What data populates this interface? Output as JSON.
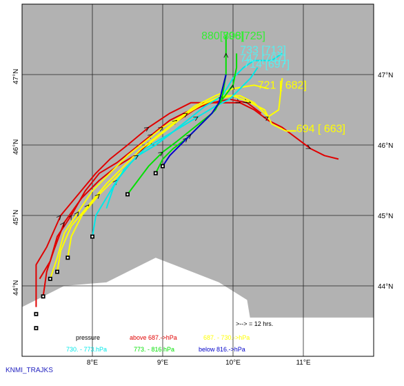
{
  "credit": "KNMI_TRAJKS",
  "interval_note": ">--> = 12 hrs.",
  "legend": {
    "title": "pressure",
    "entries": [
      {
        "text": "above   687.->hPa",
        "color": "#e00000"
      },
      {
        "text": "687. -     730.->hPa",
        "color": "#ffff00"
      },
      {
        "text": "730. -     773.hPa",
        "color": "#00e8e8"
      },
      {
        "text": "773. -     816.hPa",
        "color": "#00e000"
      },
      {
        "text": "below    816.->hPa",
        "color": "#0000c8"
      }
    ]
  },
  "axes": {
    "x_ticks": [
      {
        "value": 8,
        "label": "8°E"
      },
      {
        "value": 9,
        "label": "9°E"
      },
      {
        "value": 10,
        "label": "10°E"
      },
      {
        "value": 11,
        "label": "11°E"
      }
    ],
    "y_ticks": [
      {
        "value": 44,
        "label": "44°N"
      },
      {
        "value": 45,
        "label": "45°N"
      },
      {
        "value": 46,
        "label": "46°N"
      },
      {
        "value": 47,
        "label": "47°N"
      }
    ],
    "lon_range": [
      7,
      12
    ],
    "lat_range": [
      43,
      48
    ]
  },
  "labels": [
    {
      "text": "880[808]",
      "color": "#33ee33",
      "lon": 9.55,
      "lat": 47.5
    },
    {
      "text": "796[725]",
      "color": "#33ee33",
      "lon": 9.85,
      "lat": 47.5
    },
    {
      "text": "733 [713]",
      "color": "#55f0f0",
      "lon": 10.1,
      "lat": 47.3
    },
    {
      "text": "747 [707]",
      "color": "#55f0f0",
      "lon": 10.1,
      "lat": 47.18
    },
    {
      "text": "714 [697]",
      "color": "#55f0f0",
      "lon": 10.15,
      "lat": 47.1
    },
    {
      "text": "721 [ 682]",
      "color": "#ffff00",
      "lon": 10.35,
      "lat": 46.8
    },
    {
      "text": "694 [ 663]",
      "color": "#ffff00",
      "lon": 10.9,
      "lat": 46.18
    }
  ],
  "trajectories": [
    {
      "color": "#e00000",
      "points": [
        [
          7.2,
          43.7
        ],
        [
          7.2,
          44.3
        ],
        [
          7.35,
          44.55
        ],
        [
          7.55,
          45.0
        ],
        [
          7.8,
          45.3
        ],
        [
          8.05,
          45.6
        ],
        [
          8.25,
          45.8
        ],
        [
          8.5,
          46.0
        ],
        [
          8.8,
          46.25
        ],
        [
          9.1,
          46.45
        ],
        [
          9.4,
          46.6
        ],
        [
          9.7,
          46.6
        ],
        [
          9.95,
          46.6
        ],
        [
          10.1,
          46.6
        ],
        [
          10.3,
          46.5
        ],
        [
          10.5,
          46.35
        ],
        [
          10.7,
          46.25
        ],
        [
          10.9,
          46.1
        ],
        [
          11.1,
          45.95
        ],
        [
          11.3,
          45.85
        ],
        [
          11.5,
          45.8
        ]
      ]
    },
    {
      "color": "#e00000",
      "points": [
        [
          7.25,
          44.1
        ],
        [
          7.4,
          44.35
        ],
        [
          7.5,
          44.7
        ],
        [
          7.7,
          45.0
        ],
        [
          7.9,
          45.35
        ],
        [
          8.1,
          45.6
        ],
        [
          8.35,
          45.75
        ],
        [
          8.6,
          45.95
        ],
        [
          8.85,
          46.15
        ],
        [
          9.1,
          46.35
        ],
        [
          9.4,
          46.5
        ],
        [
          9.7,
          46.6
        ],
        [
          9.95,
          46.65
        ],
        [
          10.2,
          46.6
        ],
        [
          10.4,
          46.45
        ]
      ]
    },
    {
      "color": "#e00000",
      "points": [
        [
          7.3,
          43.85
        ],
        [
          7.35,
          44.2
        ],
        [
          7.45,
          44.5
        ],
        [
          7.6,
          44.9
        ],
        [
          7.85,
          45.25
        ],
        [
          8.1,
          45.5
        ],
        [
          8.35,
          45.7
        ],
        [
          8.6,
          45.85
        ],
        [
          8.85,
          46.05
        ],
        [
          9.15,
          46.3
        ],
        [
          9.45,
          46.5
        ],
        [
          9.75,
          46.65
        ],
        [
          9.95,
          46.7
        ]
      ]
    },
    {
      "color": "#ffff00",
      "points": [
        [
          7.4,
          44.1
        ],
        [
          7.5,
          44.4
        ],
        [
          7.6,
          44.75
        ],
        [
          7.8,
          45.05
        ],
        [
          8.0,
          45.35
        ],
        [
          8.25,
          45.6
        ],
        [
          8.5,
          45.85
        ],
        [
          8.75,
          46.05
        ],
        [
          9.0,
          46.25
        ],
        [
          9.25,
          46.4
        ],
        [
          9.5,
          46.55
        ],
        [
          9.75,
          46.65
        ],
        [
          10.0,
          46.7
        ],
        [
          10.25,
          46.6
        ],
        [
          10.45,
          46.5
        ],
        [
          10.55,
          46.3
        ],
        [
          10.75,
          46.2
        ],
        [
          10.9,
          46.2
        ]
      ]
    },
    {
      "color": "#ffff00",
      "points": [
        [
          7.5,
          44.2
        ],
        [
          7.55,
          44.5
        ],
        [
          7.7,
          44.85
        ],
        [
          7.95,
          45.15
        ],
        [
          8.2,
          45.45
        ],
        [
          8.45,
          45.7
        ],
        [
          8.7,
          45.95
        ],
        [
          8.95,
          46.15
        ],
        [
          9.2,
          46.35
        ],
        [
          9.45,
          46.55
        ],
        [
          9.75,
          46.7
        ],
        [
          10.0,
          46.8
        ],
        [
          10.3,
          46.85
        ],
        [
          10.5,
          46.8
        ]
      ]
    },
    {
      "color": "#ffff00",
      "points": [
        [
          7.65,
          44.4
        ],
        [
          7.7,
          44.7
        ],
        [
          7.85,
          45.0
        ],
        [
          8.1,
          45.3
        ],
        [
          8.35,
          45.55
        ],
        [
          8.6,
          45.8
        ],
        [
          8.85,
          46.05
        ],
        [
          9.1,
          46.25
        ],
        [
          9.35,
          46.45
        ],
        [
          9.6,
          46.6
        ],
        [
          9.85,
          46.7
        ],
        [
          10.1,
          46.7
        ],
        [
          10.3,
          46.6
        ],
        [
          10.5,
          46.4
        ],
        [
          10.65,
          46.5
        ],
        [
          10.7,
          46.95
        ]
      ]
    },
    {
      "color": "#00e8e8",
      "points": [
        [
          8.0,
          44.7
        ],
        [
          8.05,
          45.0
        ],
        [
          8.2,
          45.25
        ],
        [
          8.35,
          45.5
        ],
        [
          8.55,
          45.75
        ],
        [
          8.75,
          45.95
        ],
        [
          9.0,
          46.1
        ],
        [
          9.25,
          46.25
        ],
        [
          9.5,
          46.4
        ],
        [
          9.75,
          46.55
        ],
        [
          9.95,
          46.65
        ],
        [
          10.1,
          46.8
        ],
        [
          10.25,
          46.95
        ],
        [
          10.35,
          47.1
        ]
      ]
    },
    {
      "color": "#00e8e8",
      "points": [
        [
          8.2,
          45.1
        ],
        [
          8.3,
          45.4
        ],
        [
          8.45,
          45.65
        ],
        [
          8.65,
          45.85
        ],
        [
          8.9,
          46.0
        ],
        [
          9.1,
          46.15
        ],
        [
          9.35,
          46.35
        ],
        [
          9.6,
          46.55
        ],
        [
          9.85,
          46.7
        ],
        [
          10.0,
          46.95
        ],
        [
          10.15,
          47.1
        ],
        [
          10.3,
          47.2
        ],
        [
          10.55,
          47.2
        ],
        [
          10.7,
          47.3
        ]
      ]
    },
    {
      "color": "#00e000",
      "points": [
        [
          8.5,
          45.3
        ],
        [
          8.65,
          45.5
        ],
        [
          8.8,
          45.7
        ],
        [
          9.0,
          45.9
        ],
        [
          9.2,
          46.05
        ],
        [
          9.45,
          46.25
        ],
        [
          9.7,
          46.45
        ],
        [
          9.85,
          46.65
        ],
        [
          10.0,
          46.85
        ],
        [
          10.05,
          47.1
        ],
        [
          10.05,
          47.3
        ]
      ]
    },
    {
      "color": "#00e000",
      "points": [
        [
          8.9,
          45.6
        ],
        [
          9.0,
          45.8
        ],
        [
          9.15,
          45.95
        ],
        [
          9.35,
          46.1
        ],
        [
          9.55,
          46.3
        ],
        [
          9.75,
          46.5
        ],
        [
          9.85,
          46.7
        ],
        [
          9.9,
          47.0
        ],
        [
          9.9,
          47.3
        ],
        [
          9.9,
          47.55
        ]
      ]
    },
    {
      "color": "#0000c8",
      "points": [
        [
          9.0,
          45.7
        ],
        [
          9.1,
          45.85
        ],
        [
          9.25,
          46.0
        ],
        [
          9.4,
          46.15
        ],
        [
          9.55,
          46.3
        ],
        [
          9.7,
          46.45
        ],
        [
          9.8,
          46.6
        ],
        [
          9.85,
          46.8
        ],
        [
          9.9,
          47.0
        ]
      ]
    }
  ],
  "starts": [
    [
      7.2,
      43.4
    ],
    [
      7.2,
      43.6
    ],
    [
      7.3,
      43.85
    ],
    [
      7.4,
      44.1
    ],
    [
      7.5,
      44.2
    ],
    [
      7.65,
      44.4
    ],
    [
      8.0,
      44.7
    ],
    [
      8.5,
      45.3
    ],
    [
      8.9,
      45.6
    ],
    [
      9.0,
      45.7
    ]
  ],
  "land": [
    [
      7.0,
      43.2
    ],
    [
      7.0,
      43.7
    ],
    [
      7.6,
      44.0
    ],
    [
      8.2,
      44.05
    ],
    [
      8.9,
      44.4
    ],
    [
      9.8,
      44.05
    ],
    [
      10.2,
      43.8
    ],
    [
      10.3,
      43.2
    ]
  ]
}
